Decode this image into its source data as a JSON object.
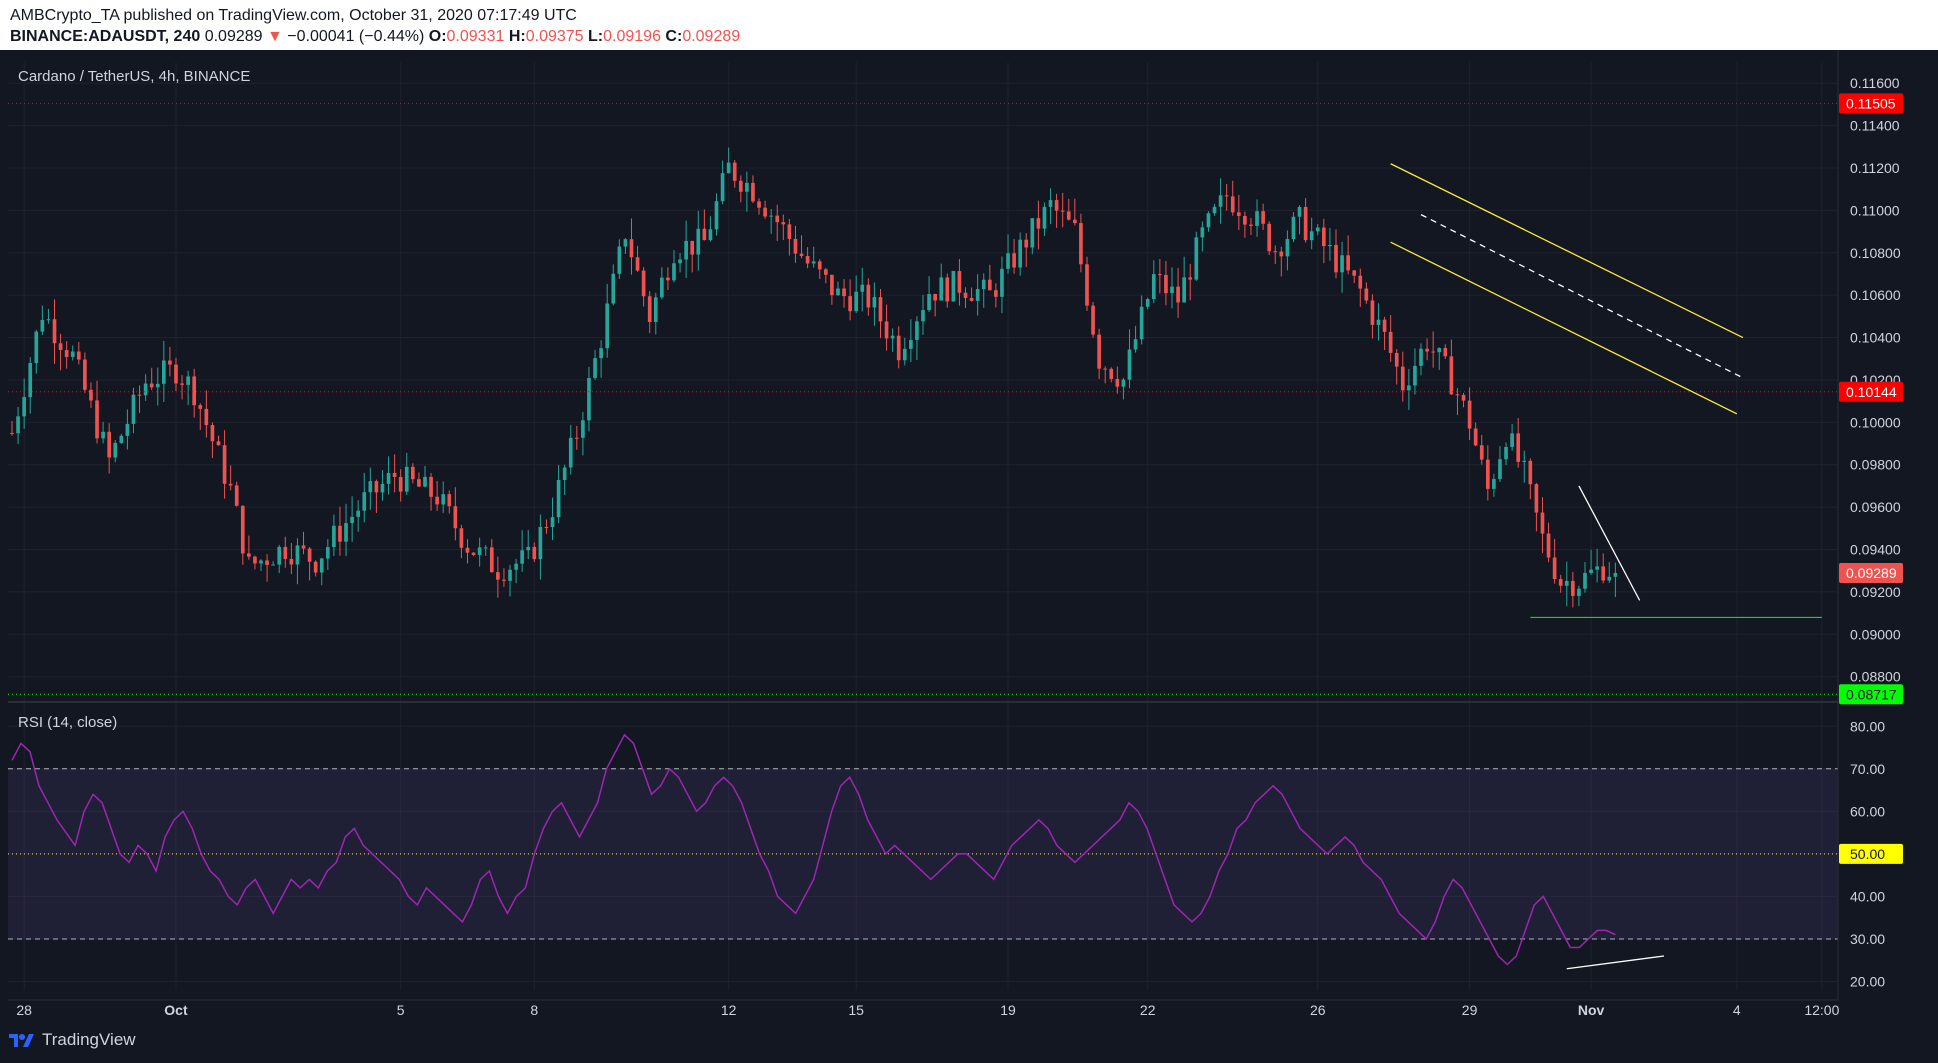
{
  "header": {
    "publisher": "AMBCrypto_TA published on TradingView.com, October 31, 2020 07:17:49 UTC",
    "symbol": "BINANCE:ADAUSDT, 240",
    "last": "0.09289",
    "change": "−0.00041 (−0.44%)",
    "o_label": "O:",
    "o": "0.09331",
    "h_label": "H:",
    "h": "0.09375",
    "l_label": "L:",
    "l": "0.09196",
    "c_label": "C:",
    "c": "0.09289"
  },
  "main_pane": {
    "title": "Cardano / TetherUS, 4h, BINANCE"
  },
  "rsi_pane": {
    "title": "RSI (14, close)"
  },
  "footer": {
    "brand": "TradingView"
  },
  "colors": {
    "up": "#26a69a",
    "down": "#ef5350",
    "rsi": "#9c27b0",
    "rsi_band": "#7e57c2",
    "resistance": "#ff0000",
    "support": "#00ff00",
    "channel": "#ffeb3b"
  },
  "chart_data": [
    {
      "type": "candlestick",
      "title": "Cardano / TetherUS, 4h, BINANCE",
      "x_tick_labels": [
        "28",
        "Oct",
        "5",
        "8",
        "12",
        "15",
        "19",
        "22",
        "26",
        "29",
        "Nov",
        "4",
        "12:00"
      ],
      "y_tick_labels": [
        "0.11600",
        "0.11400",
        "0.11200",
        "0.11000",
        "0.10800",
        "0.10600",
        "0.10400",
        "0.10200",
        "0.10000",
        "0.09800",
        "0.09600",
        "0.09400",
        "0.09200",
        "0.09000",
        "0.08800"
      ],
      "ylim": [
        0.0869,
        0.117
      ],
      "anchors": [
        [
          0,
          0.0995
        ],
        [
          5,
          0.1052
        ],
        [
          10,
          0.1031
        ],
        [
          16,
          0.0982
        ],
        [
          22,
          0.1019
        ],
        [
          27,
          0.1025
        ],
        [
          30,
          0.1015
        ],
        [
          36,
          0.0968
        ],
        [
          39,
          0.0932
        ],
        [
          45,
          0.0941
        ],
        [
          50,
          0.0935
        ],
        [
          58,
          0.0963
        ],
        [
          63,
          0.0975
        ],
        [
          70,
          0.0965
        ],
        [
          75,
          0.0942
        ],
        [
          80,
          0.0931
        ],
        [
          85,
          0.0935
        ],
        [
          89,
          0.096
        ],
        [
          93,
          0.0995
        ],
        [
          97,
          0.104
        ],
        [
          101,
          0.109
        ],
        [
          105,
          0.105
        ],
        [
          109,
          0.1082
        ],
        [
          114,
          0.1085
        ],
        [
          118,
          0.112
        ],
        [
          122,
          0.111
        ],
        [
          126,
          0.1095
        ],
        [
          131,
          0.1075
        ],
        [
          136,
          0.106
        ],
        [
          141,
          0.1058
        ],
        [
          146,
          0.1035
        ],
        [
          151,
          0.1062
        ],
        [
          156,
          0.1065
        ],
        [
          161,
          0.106
        ],
        [
          166,
          0.1082
        ],
        [
          171,
          0.1102
        ],
        [
          175,
          0.109
        ],
        [
          179,
          0.103
        ],
        [
          183,
          0.102
        ],
        [
          188,
          0.1068
        ],
        [
          192,
          0.1058
        ],
        [
          196,
          0.1088
        ],
        [
          200,
          0.1107
        ],
        [
          204,
          0.1098
        ],
        [
          208,
          0.1082
        ],
        [
          212,
          0.1095
        ],
        [
          217,
          0.108
        ],
        [
          222,
          0.1062
        ],
        [
          226,
          0.104
        ],
        [
          229,
          0.1018
        ],
        [
          233,
          0.1038
        ],
        [
          237,
          0.102
        ],
        [
          240,
          0.1
        ],
        [
          243,
          0.0968
        ],
        [
          246,
          0.0995
        ],
        [
          249,
          0.0975
        ],
        [
          252,
          0.0945
        ],
        [
          255,
          0.0925
        ],
        [
          258,
          0.0925
        ],
        [
          262,
          0.0932
        ],
        [
          264,
          0.0929
        ]
      ],
      "last_price": 0.09289,
      "series": [
        {
          "name": "ADAUSDT"
        }
      ],
      "price_labels": [
        {
          "value": 0.11505,
          "text": "0.11505",
          "color": "#ff0000",
          "text_color": "#ffffff"
        },
        {
          "value": 0.10144,
          "text": "0.10144",
          "color": "#ff0000",
          "text_color": "#ffffff"
        },
        {
          "value": 0.09289,
          "text": "0.09289",
          "color": "#ef5350",
          "text_color": "#ffffff"
        },
        {
          "value": 0.08717,
          "text": "0.08717",
          "color": "#00ff00",
          "text_color": "#131722"
        }
      ],
      "horizontal_lines": [
        {
          "value": 0.11505,
          "color": "#ff0000",
          "style": "dotted"
        },
        {
          "value": 0.10144,
          "color": "#ff0000",
          "style": "dotted"
        },
        {
          "value": 0.08717,
          "color": "#00ff00",
          "style": "dotted"
        },
        {
          "value": 0.0908,
          "color": "#00ff00",
          "style": "solid",
          "x_from": 250,
          "x_to": 298
        }
      ],
      "trend_lines": [
        {
          "color": "#ffeb3b",
          "from": [
            227,
            0.1122
          ],
          "to": [
            285,
            0.104
          ]
        },
        {
          "color": "#ffeb3b",
          "from": [
            227,
            0.1085
          ],
          "to": [
            284,
            0.1004
          ]
        },
        {
          "color": "#ffffff",
          "style": "dashed",
          "from": [
            232,
            0.1098
          ],
          "to": [
            285,
            0.1021
          ]
        },
        {
          "color": "#ffffff",
          "from": [
            258,
            0.097
          ],
          "to": [
            268,
            0.0916
          ]
        }
      ]
    },
    {
      "type": "line",
      "title": "RSI (14, close)",
      "y_tick_labels": [
        "80.00",
        "70.00",
        "60.00",
        "50.00",
        "40.00",
        "30.00",
        "20.00"
      ],
      "ylim": [
        18,
        85
      ],
      "bands": {
        "upper": 70,
        "middle": 50,
        "lower": 30
      },
      "middle_label": "50.00",
      "series": [
        {
          "name": "RSI",
          "color": "#9c27b0",
          "values": [
            72,
            76,
            74,
            66,
            62,
            58,
            55,
            52,
            60,
            64,
            62,
            56,
            50,
            48,
            52,
            50,
            46,
            54,
            58,
            60,
            56,
            50,
            46,
            44,
            40,
            38,
            42,
            44,
            40,
            36,
            40,
            44,
            42,
            44,
            42,
            46,
            48,
            54,
            56,
            52,
            50,
            48,
            46,
            44,
            40,
            38,
            42,
            40,
            38,
            36,
            34,
            38,
            44,
            46,
            40,
            36,
            40,
            42,
            50,
            56,
            60,
            62,
            58,
            54,
            58,
            62,
            70,
            74,
            78,
            76,
            70,
            64,
            66,
            70,
            68,
            64,
            60,
            62,
            66,
            68,
            66,
            62,
            56,
            50,
            46,
            40,
            38,
            36,
            40,
            44,
            52,
            60,
            66,
            68,
            64,
            58,
            54,
            50,
            52,
            50,
            48,
            46,
            44,
            46,
            48,
            50,
            50,
            48,
            46,
            44,
            48,
            52,
            54,
            56,
            58,
            56,
            52,
            50,
            48,
            50,
            52,
            54,
            56,
            58,
            62,
            60,
            56,
            50,
            44,
            38,
            36,
            34,
            36,
            40,
            46,
            50,
            56,
            58,
            62,
            64,
            66,
            64,
            60,
            56,
            54,
            52,
            50,
            52,
            54,
            52,
            48,
            46,
            44,
            40,
            36,
            34,
            32,
            30,
            34,
            40,
            44,
            42,
            38,
            34,
            30,
            26,
            24,
            26,
            32,
            38,
            40,
            36,
            32,
            28,
            28,
            30,
            32,
            32,
            31
          ]
        }
      ],
      "trend_lines": [
        {
          "color": "#ffffff",
          "from": [
            256,
            23
          ],
          "to": [
            272,
            26
          ]
        }
      ]
    }
  ]
}
